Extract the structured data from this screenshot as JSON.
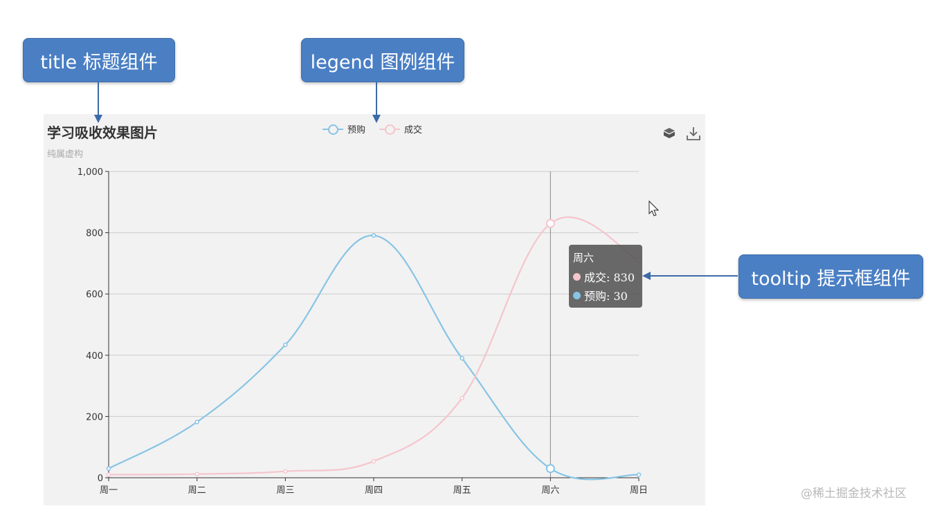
{
  "callouts": {
    "title": "title 标题组件",
    "legend": "legend 图例组件",
    "tooltip": "tooltip 提示框组件"
  },
  "colors": {
    "callout_bg": "#4a7fc4",
    "series_presale": "#87c4e5",
    "series_deal": "#f5c5cc",
    "panel_bg": "#f2f2f2"
  },
  "toolbox": {
    "icons": [
      "restore-icon",
      "save-as-image-icon"
    ]
  },
  "chart_data": {
    "type": "line",
    "title": "学习吸收效果图片",
    "subtitle": "纯属虚构",
    "categories": [
      "周一",
      "周二",
      "周三",
      "周四",
      "周五",
      "周六",
      "周日"
    ],
    "yticks": [
      "0",
      "200",
      "400",
      "600",
      "800",
      "1,000"
    ],
    "ylim": [
      0,
      1000
    ],
    "smooth": true,
    "legend_position": "top-center",
    "series": [
      {
        "name": "预购",
        "color": "#87c4e5",
        "values": [
          30,
          182,
          434,
          791,
          390,
          30,
          10
        ]
      },
      {
        "name": "成交",
        "color": "#f5c5cc",
        "values": [
          10,
          12,
          21,
          54,
          260,
          830,
          710
        ]
      }
    ],
    "tooltip": {
      "category": "周六",
      "rows": [
        {
          "label": "成交: 830",
          "color": "#f5c5cc"
        },
        {
          "label": "预购: 30",
          "color": "#87c4e5"
        }
      ]
    }
  },
  "watermark": "@稀土掘金技术社区"
}
